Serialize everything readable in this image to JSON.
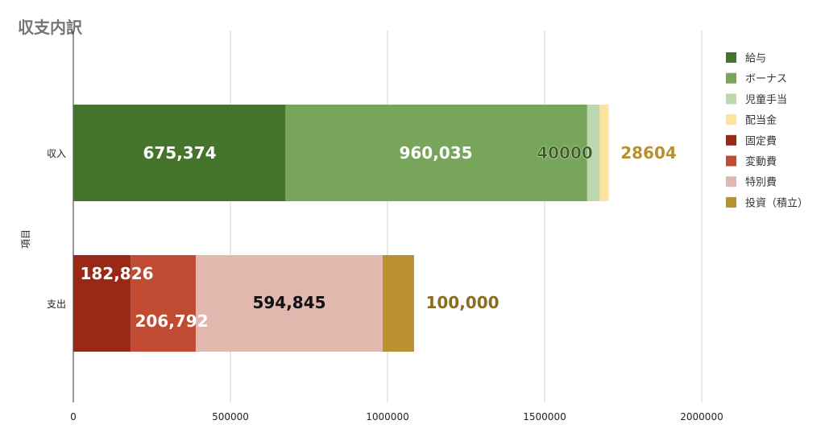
{
  "chart_data": {
    "type": "bar",
    "orientation": "horizontal",
    "stacked": true,
    "title": "収支内訳",
    "ylabel": "項目",
    "xlabel": "",
    "xlim": [
      0,
      2000000
    ],
    "xticks": [
      "0",
      "500000",
      "1000000",
      "1500000",
      "2000000"
    ],
    "grid": true,
    "legend_position": "right",
    "categories": [
      "収入",
      "支出"
    ],
    "series": [
      {
        "name": "給与",
        "color": "#45752c",
        "values": [
          675374,
          0
        ],
        "labels": [
          "675,374",
          ""
        ],
        "label_color": "#ffffff"
      },
      {
        "name": "ボーナス",
        "color": "#77a55a",
        "values": [
          960035,
          0
        ],
        "labels": [
          "960,035",
          ""
        ],
        "label_color": "#ffffff"
      },
      {
        "name": "児童手当",
        "color": "#bdd7b0",
        "values": [
          40000,
          0
        ],
        "labels": [
          "40000",
          ""
        ],
        "label_color": "#3a5a22"
      },
      {
        "name": "配当金",
        "color": "#fbe4a0",
        "values": [
          28604,
          0
        ],
        "labels": [
          "28604",
          ""
        ],
        "label_color": "#b8912e"
      },
      {
        "name": "固定費",
        "color": "#9a2817",
        "values": [
          0,
          182826
        ],
        "labels": [
          "",
          "182,826"
        ],
        "label_color": "#ffffff"
      },
      {
        "name": "変動費",
        "color": "#c04a32",
        "values": [
          0,
          206792
        ],
        "labels": [
          "",
          "206,792"
        ],
        "label_color": "#ffffff"
      },
      {
        "name": "特別費",
        "color": "#e0b8ae",
        "values": [
          0,
          594845
        ],
        "labels": [
          "",
          "594,845"
        ],
        "label_color": "#111111"
      },
      {
        "name": "投資（積立）",
        "color": "#b9912f",
        "values": [
          0,
          100000
        ],
        "labels": [
          "",
          "100,000"
        ],
        "label_color": "#8a6c1f"
      }
    ]
  }
}
